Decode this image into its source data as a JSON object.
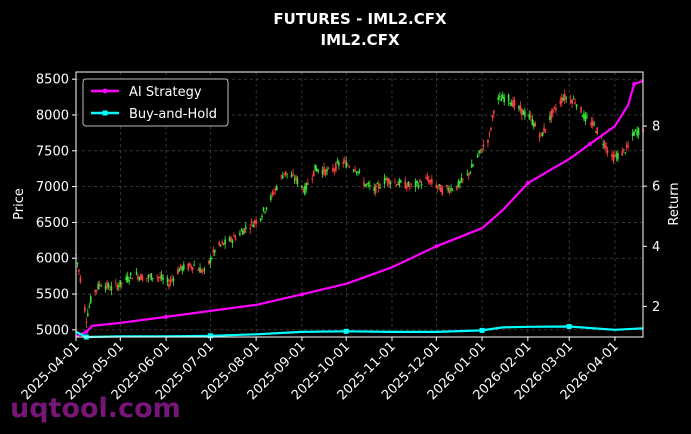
{
  "chart_data": {
    "type": "line",
    "title": "FUTURES - IML2.CFX",
    "subtitle": "IML2.CFX",
    "ylabel_left": "Price",
    "ylabel_right": "Return",
    "ylim_left": [
      4900,
      8600
    ],
    "ylim_right": [
      0.98,
      9.8
    ],
    "yticks_left": [
      "5000",
      "5500",
      "6000",
      "6500",
      "7000",
      "7500",
      "8000",
      "8500"
    ],
    "yticks_right": [
      "2",
      "4",
      "6",
      "8"
    ],
    "x_start": "2025-04-01",
    "x_end": "2026-04-20",
    "xticks": [
      "2025-04-01",
      "2025-05-01",
      "2025-06-01",
      "2025-07-01",
      "2025-08-01",
      "2025-09-01",
      "2025-10-01",
      "2025-11-01",
      "2025-12-01",
      "2026-01-01",
      "2026-02-01",
      "2026-03-01",
      "2026-04-01"
    ],
    "grid": true,
    "legend_position": "top-left",
    "colors": {
      "up": "#39e639",
      "down": "#ff4040",
      "strategy": "#ff00ff",
      "buyhold": "#00ffff",
      "grid": "#555555",
      "background": "#000000"
    },
    "price_path": [
      [
        "2025-04-01",
        6050
      ],
      [
        "2025-04-05",
        5600
      ],
      [
        "2025-04-08",
        5150
      ],
      [
        "2025-04-12",
        5500
      ],
      [
        "2025-04-18",
        5650
      ],
      [
        "2025-04-25",
        5580
      ],
      [
        "2025-05-02",
        5650
      ],
      [
        "2025-05-10",
        5780
      ],
      [
        "2025-05-18",
        5720
      ],
      [
        "2025-05-25",
        5760
      ],
      [
        "2025-06-03",
        5650
      ],
      [
        "2025-06-10",
        5850
      ],
      [
        "2025-06-20",
        5900
      ],
      [
        "2025-06-27",
        5800
      ],
      [
        "2025-07-05",
        6150
      ],
      [
        "2025-07-15",
        6250
      ],
      [
        "2025-07-25",
        6420
      ],
      [
        "2025-08-03",
        6550
      ],
      [
        "2025-08-10",
        6800
      ],
      [
        "2025-08-20",
        7200
      ],
      [
        "2025-08-28",
        7100
      ],
      [
        "2025-09-03",
        6950
      ],
      [
        "2025-09-10",
        7250
      ],
      [
        "2025-09-20",
        7200
      ],
      [
        "2025-09-28",
        7350
      ],
      [
        "2025-10-08",
        7250
      ],
      [
        "2025-10-13",
        7050
      ],
      [
        "2025-10-20",
        6950
      ],
      [
        "2025-10-28",
        7100
      ],
      [
        "2025-11-05",
        7050
      ],
      [
        "2025-11-15",
        7000
      ],
      [
        "2025-11-25",
        7100
      ],
      [
        "2025-12-05",
        6950
      ],
      [
        "2025-12-15",
        7000
      ],
      [
        "2025-12-22",
        7150
      ],
      [
        "2025-12-30",
        7450
      ],
      [
        "2026-01-06",
        7700
      ],
      [
        "2026-01-10",
        8200
      ],
      [
        "2026-01-18",
        8250
      ],
      [
        "2026-01-25",
        8100
      ],
      [
        "2026-02-03",
        7950
      ],
      [
        "2026-02-10",
        7700
      ],
      [
        "2026-02-17",
        8000
      ],
      [
        "2026-02-25",
        8250
      ],
      [
        "2026-03-05",
        8200
      ],
      [
        "2026-03-12",
        7950
      ],
      [
        "2026-03-18",
        7850
      ],
      [
        "2026-03-25",
        7600
      ],
      [
        "2026-03-30",
        7400
      ],
      [
        "2026-04-05",
        7450
      ],
      [
        "2026-04-10",
        7550
      ],
      [
        "2026-04-14",
        7750
      ],
      [
        "2026-04-20",
        7800
      ]
    ],
    "series": [
      {
        "name": "AI Strategy",
        "points": [
          [
            "2025-04-01",
            1.0
          ],
          [
            "2025-04-08",
            1.15
          ],
          [
            "2025-04-12",
            1.35
          ],
          [
            "2025-05-01",
            1.45
          ],
          [
            "2025-06-01",
            1.65
          ],
          [
            "2025-07-01",
            1.85
          ],
          [
            "2025-08-01",
            2.05
          ],
          [
            "2025-09-01",
            2.4
          ],
          [
            "2025-10-01",
            2.75
          ],
          [
            "2025-11-01",
            3.3
          ],
          [
            "2025-12-01",
            4.0
          ],
          [
            "2026-01-01",
            4.6
          ],
          [
            "2026-01-15",
            5.2
          ],
          [
            "2026-02-01",
            6.1
          ],
          [
            "2026-02-15",
            6.5
          ],
          [
            "2026-03-01",
            6.9
          ],
          [
            "2026-03-15",
            7.4
          ],
          [
            "2026-04-01",
            8.0
          ],
          [
            "2026-04-10",
            8.7
          ],
          [
            "2026-04-14",
            9.4
          ],
          [
            "2026-04-20",
            9.5
          ]
        ]
      },
      {
        "name": "Buy-and-Hold",
        "points": [
          [
            "2025-04-01",
            1.15
          ],
          [
            "2025-04-08",
            0.98
          ],
          [
            "2025-05-01",
            1.0
          ],
          [
            "2025-06-01",
            1.0
          ],
          [
            "2025-07-01",
            1.02
          ],
          [
            "2025-08-01",
            1.07
          ],
          [
            "2025-09-01",
            1.15
          ],
          [
            "2025-10-01",
            1.17
          ],
          [
            "2025-11-01",
            1.15
          ],
          [
            "2025-12-01",
            1.15
          ],
          [
            "2026-01-01",
            1.2
          ],
          [
            "2026-01-15",
            1.3
          ],
          [
            "2026-02-01",
            1.32
          ],
          [
            "2026-03-01",
            1.33
          ],
          [
            "2026-04-01",
            1.22
          ],
          [
            "2026-04-20",
            1.27
          ]
        ]
      }
    ]
  },
  "watermark": "uqtool.com"
}
